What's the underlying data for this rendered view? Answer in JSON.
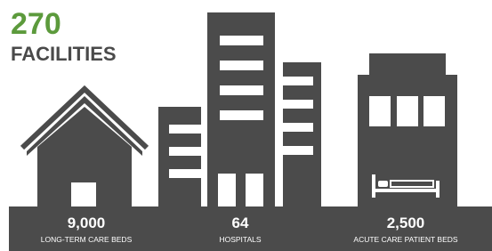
{
  "header": {
    "count": "270",
    "label": "FACILITIES"
  },
  "stats": [
    {
      "value": "9,000",
      "label": "LONG-TERM CARE BEDS"
    },
    {
      "value": "64",
      "label": "HOSPITALS"
    },
    {
      "value": "2,500",
      "label": "ACUTE CARE PATIENT BEDS"
    }
  ]
}
